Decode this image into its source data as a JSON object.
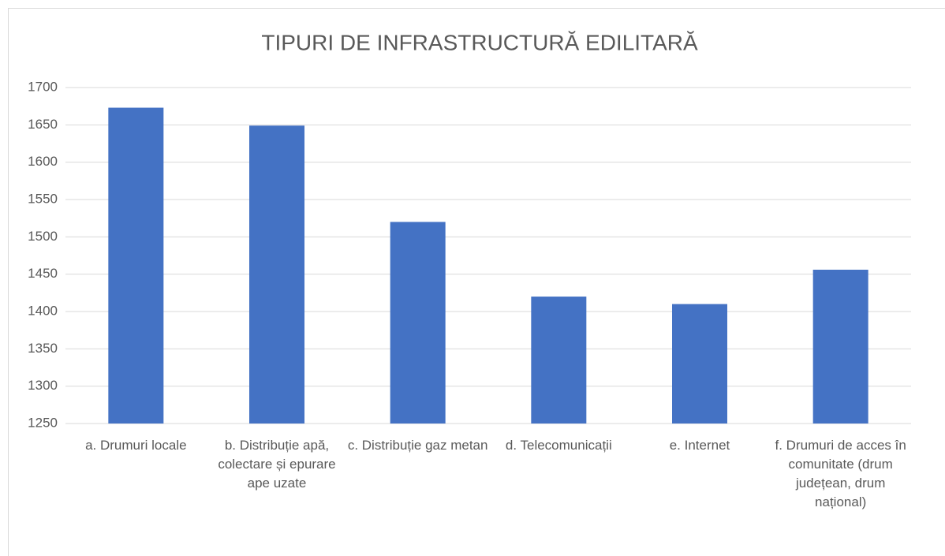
{
  "chart_data": {
    "type": "bar",
    "title": "TIPURI DE INFRASTRUCTURĂ EDILITARĂ",
    "categories": [
      "a. Drumuri locale",
      "b. Distribuție apă, colectare și epurare ape uzate",
      "c. Distribuție gaz metan",
      "d. Telecomunicații",
      "e. Internet",
      "f. Drumuri de acces în comunitate (drum județean, drum național)"
    ],
    "values": [
      1673,
      1649,
      1520,
      1420,
      1410,
      1456
    ],
    "color": "#4472c4",
    "ylim": [
      1250,
      1700
    ],
    "yticks": [
      1250,
      1300,
      1350,
      1400,
      1450,
      1500,
      1550,
      1600,
      1650,
      1700
    ],
    "grid": true
  }
}
